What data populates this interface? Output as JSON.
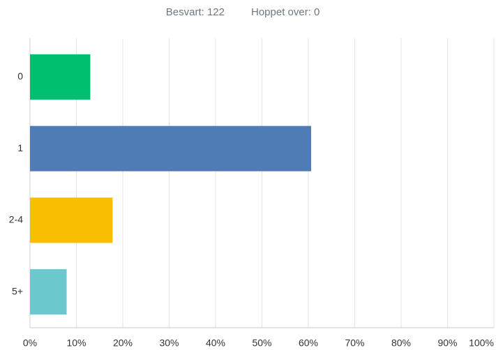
{
  "header": {
    "answered": "Besvart: 122",
    "skipped": "Hoppet over: 0"
  },
  "chart_data": {
    "type": "bar",
    "orientation": "horizontal",
    "categories": [
      "0",
      "1",
      "2-4",
      "5+"
    ],
    "values": [
      13.0,
      60.6,
      17.8,
      7.9
    ],
    "colors": [
      "#00bf6f",
      "#507cb6",
      "#f9be00",
      "#6bc8cd"
    ],
    "xlim": [
      0,
      100
    ],
    "xticks": [
      {
        "value": 0,
        "label": "0%"
      },
      {
        "value": 10,
        "label": "10%"
      },
      {
        "value": 20,
        "label": "20%"
      },
      {
        "value": 30,
        "label": "30%"
      },
      {
        "value": 40,
        "label": "40%"
      },
      {
        "value": 50,
        "label": "50%"
      },
      {
        "value": 60,
        "label": "60%"
      },
      {
        "value": 70,
        "label": "70%"
      },
      {
        "value": 80,
        "label": "80%"
      },
      {
        "value": 90,
        "label": "90%"
      },
      {
        "value": 100,
        "label": "100%"
      }
    ],
    "grid": true
  }
}
